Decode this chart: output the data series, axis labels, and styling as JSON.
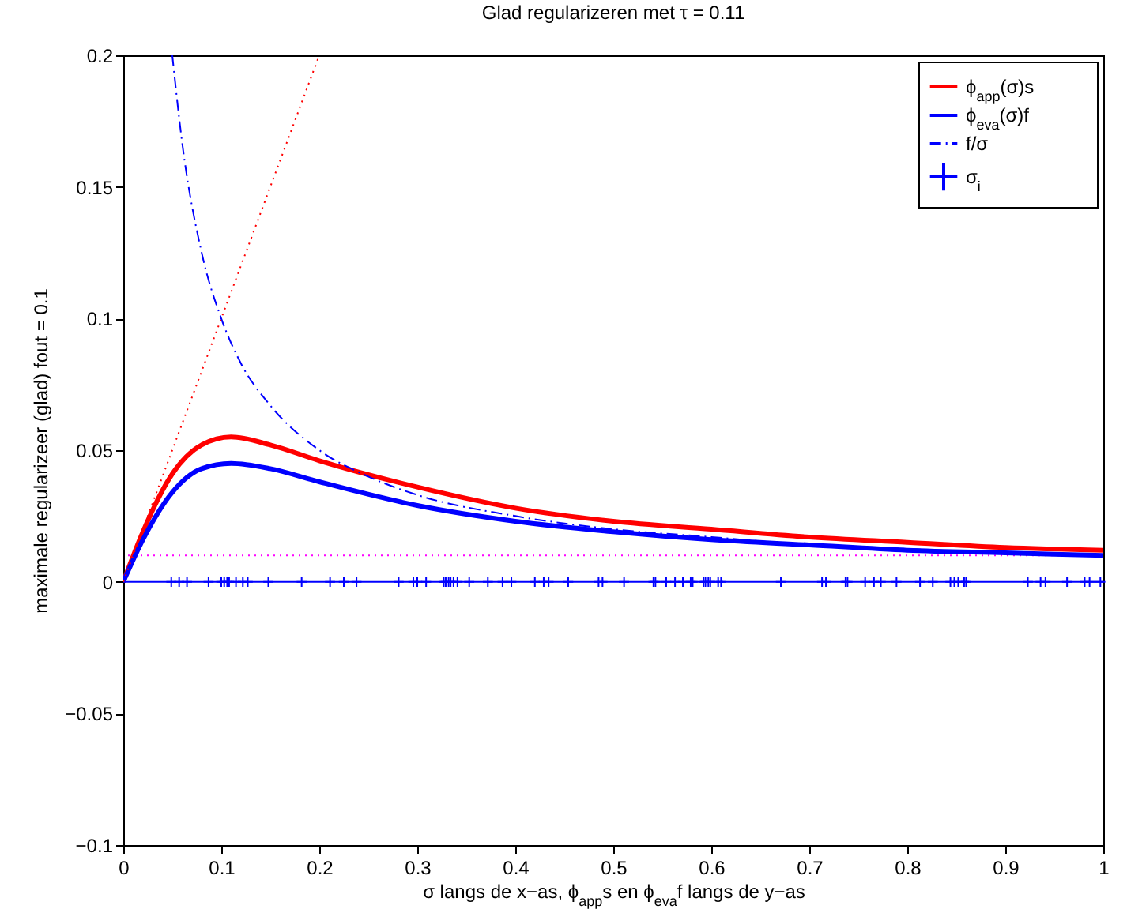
{
  "chart_data": {
    "type": "line",
    "title": "Glad regularizeren met τ = 0.11",
    "xlabel": "σ langs de x−as, ϕ$_{app}$s en ϕ$_{eva}$f langs de y−as",
    "ylabel": "maximale regularizeer (glad) fout = 0.1",
    "xlim": [
      0,
      1
    ],
    "xticks": [
      0,
      0.1,
      0.2,
      0.3,
      0.4,
      0.5,
      0.6,
      0.7,
      0.8,
      0.9,
      1
    ],
    "ylim": [
      -0.1,
      0.2
    ],
    "yticks": [
      {
        "value": -0.1,
        "label": "−0.1"
      },
      {
        "value": -0.05,
        "label": "−0.05"
      },
      0,
      0.05,
      0.1,
      0.15,
      0.2
    ],
    "grid": false,
    "legend": "top right",
    "ref_lines": [
      {
        "axis": "y",
        "value": 0.01,
        "color": "#ff00ff",
        "line_style": "dotted"
      },
      {
        "axis": "y",
        "value": 0,
        "color": "#0000ff",
        "line_style": "solid"
      }
    ],
    "series": [
      {
        "name": "ϕ$_{app}$(σ)s",
        "color": "#ff0000",
        "line_style": "solid",
        "x": [
          0,
          0.02,
          0.05,
          0.08,
          0.11,
          0.15,
          0.2,
          0.3,
          0.4,
          0.5,
          0.6,
          0.7,
          0.8,
          0.9,
          1
        ],
        "values": [
          0,
          0.019,
          0.041,
          0.052,
          0.055,
          0.052,
          0.046,
          0.036,
          0.028,
          0.023,
          0.02,
          0.017,
          0.015,
          0.013,
          0.012
        ]
      },
      {
        "name": "ϕ$_{eva}$(σ)f",
        "color": "#0000ff",
        "line_style": "solid",
        "x": [
          0,
          0.02,
          0.05,
          0.08,
          0.11,
          0.15,
          0.2,
          0.3,
          0.4,
          0.5,
          0.6,
          0.7,
          0.8,
          0.9,
          1
        ],
        "values": [
          0,
          0.016,
          0.034,
          0.043,
          0.045,
          0.043,
          0.038,
          0.029,
          0.023,
          0.019,
          0.016,
          0.014,
          0.012,
          0.011,
          0.01
        ]
      },
      {
        "name": "f/σ",
        "color": "#0000ff",
        "line_style": "dashdot",
        "x": [
          0.05,
          0.06,
          0.08,
          0.1,
          0.12,
          0.15,
          0.2,
          0.25,
          0.3,
          0.4,
          0.5,
          0.6,
          0.7,
          0.8,
          0.9,
          1
        ],
        "values": [
          0.2,
          0.167,
          0.125,
          0.1,
          0.083,
          0.067,
          0.05,
          0.04,
          0.033,
          0.025,
          0.02,
          0.017,
          0.014,
          0.0125,
          0.011,
          0.01
        ]
      },
      {
        "color": "#ff0000",
        "line_style": "dotted",
        "x": [
          0,
          0.2
        ],
        "values": [
          0,
          0.2
        ]
      },
      {
        "name": "σ$_{i}$",
        "color": "#0000ff",
        "type": "scatter",
        "marker": "cross",
        "x": [
          0.049,
          0.057,
          0.065,
          0.087,
          0.1,
          0.103,
          0.106,
          0.108,
          0.115,
          0.122,
          0.127,
          0.148,
          0.182,
          0.211,
          0.225,
          0.238,
          0.281,
          0.296,
          0.3,
          0.309,
          0.327,
          0.329,
          0.332,
          0.334,
          0.337,
          0.341,
          0.353,
          0.372,
          0.387,
          0.396,
          0.42,
          0.429,
          0.434,
          0.454,
          0.485,
          0.489,
          0.511,
          0.541,
          0.543,
          0.554,
          0.563,
          0.571,
          0.579,
          0.581,
          0.592,
          0.594,
          0.597,
          0.599,
          0.607,
          0.61,
          0.671,
          0.713,
          0.717,
          0.737,
          0.739,
          0.757,
          0.766,
          0.773,
          0.789,
          0.813,
          0.826,
          0.844,
          0.848,
          0.852,
          0.858,
          0.86,
          0.923,
          0.936,
          0.941,
          0.963,
          0.981,
          0.986,
          0.997
        ],
        "values": [
          0,
          0,
          0,
          0,
          0,
          0,
          0,
          0,
          0,
          0,
          0,
          0,
          0,
          0,
          0,
          0,
          0,
          0,
          0,
          0,
          0,
          0,
          0,
          0,
          0,
          0,
          0,
          0,
          0,
          0,
          0,
          0,
          0,
          0,
          0,
          0,
          0,
          0,
          0,
          0,
          0,
          0,
          0,
          0,
          0,
          0,
          0,
          0,
          0,
          0,
          0,
          0,
          0,
          0,
          0,
          0,
          0,
          0,
          0,
          0,
          0,
          0,
          0,
          0,
          0,
          0,
          0,
          0,
          0,
          0,
          0,
          0,
          0
        ]
      }
    ]
  }
}
